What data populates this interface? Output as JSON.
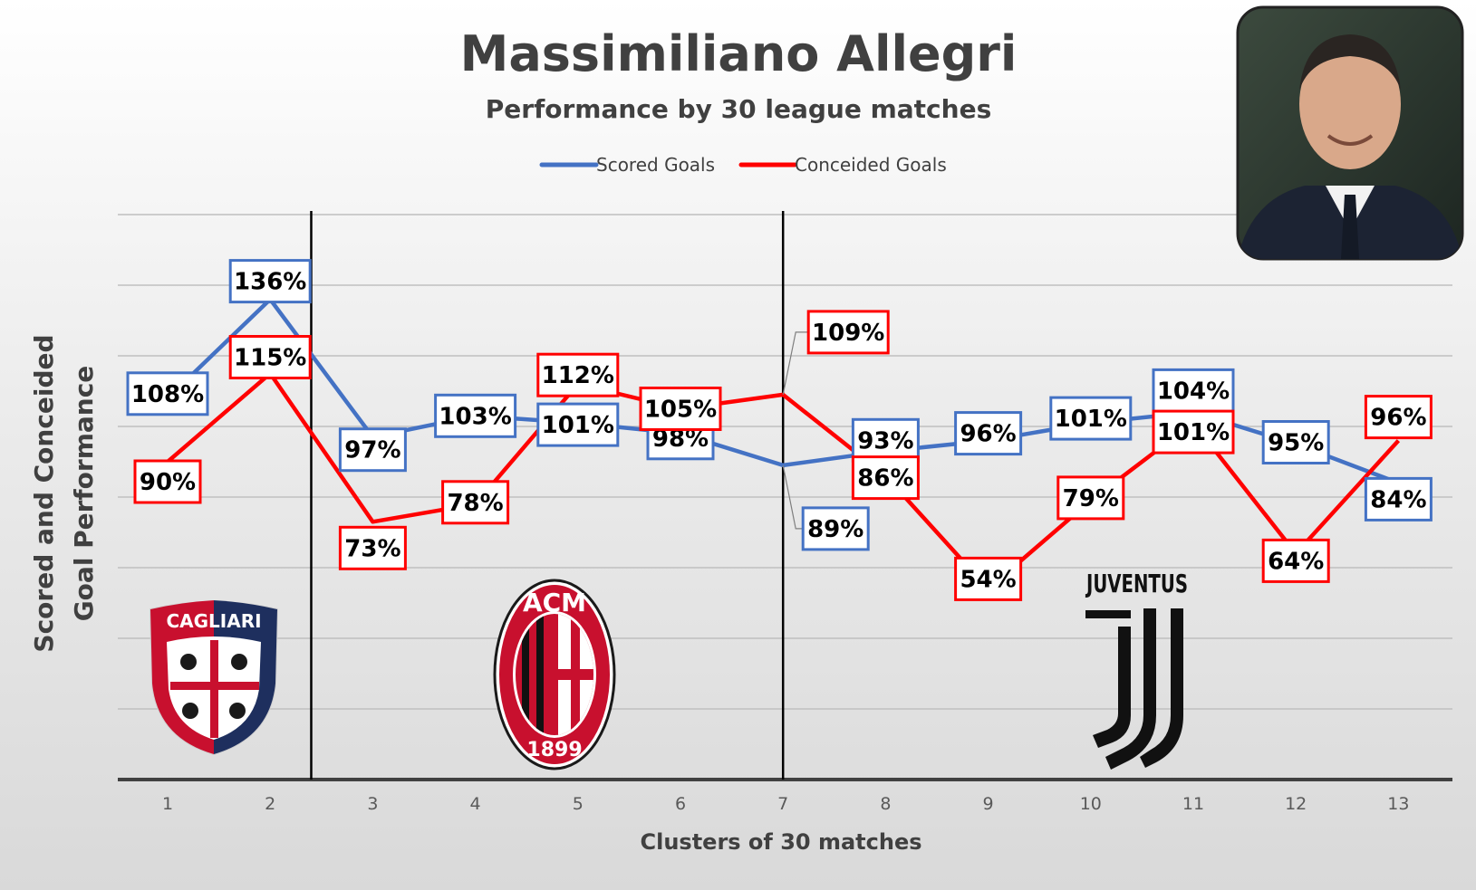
{
  "chart_data": {
    "type": "line",
    "title": "Massimiliano Allegri",
    "subtitle": "Performance by 30 league matches",
    "xlabel": "Clusters of 30 matches",
    "ylabel": "Scored and Conceided Goal Performance",
    "ylim": [
      0,
      160
    ],
    "x": [
      1,
      2,
      3,
      4,
      5,
      6,
      7,
      8,
      9,
      10,
      11,
      12,
      13
    ],
    "legend_position": "top-center",
    "grid": true,
    "series": [
      {
        "name": "Scored Goals",
        "color": "#4472C4",
        "values": [
          108,
          136,
          97,
          103,
          101,
          98,
          89,
          93,
          96,
          101,
          104,
          95,
          84
        ],
        "labels": [
          "108%",
          "136%",
          "97%",
          "103%",
          "101%",
          "98%",
          "89%",
          "93%",
          "96%",
          "101%",
          "104%",
          "95%",
          "84%"
        ]
      },
      {
        "name": "Conceided Goals",
        "color": "#FF0000",
        "values": [
          90,
          115,
          73,
          78,
          112,
          105,
          109,
          86,
          54,
          79,
          101,
          64,
          96
        ],
        "labels": [
          "90%",
          "115%",
          "73%",
          "78%",
          "112%",
          "105%",
          "109%",
          "86%",
          "54%",
          "79%",
          "101%",
          "64%",
          "96%"
        ]
      }
    ],
    "team_separators_after_x": [
      2.4,
      7
    ],
    "teams": [
      {
        "name": "Cagliari",
        "logo_text": "CAGLIARI"
      },
      {
        "name": "AC Milan",
        "logo_text": "ACM",
        "logo_year": "1899"
      },
      {
        "name": "Juventus",
        "logo_text": "JUVENTUS"
      }
    ]
  }
}
